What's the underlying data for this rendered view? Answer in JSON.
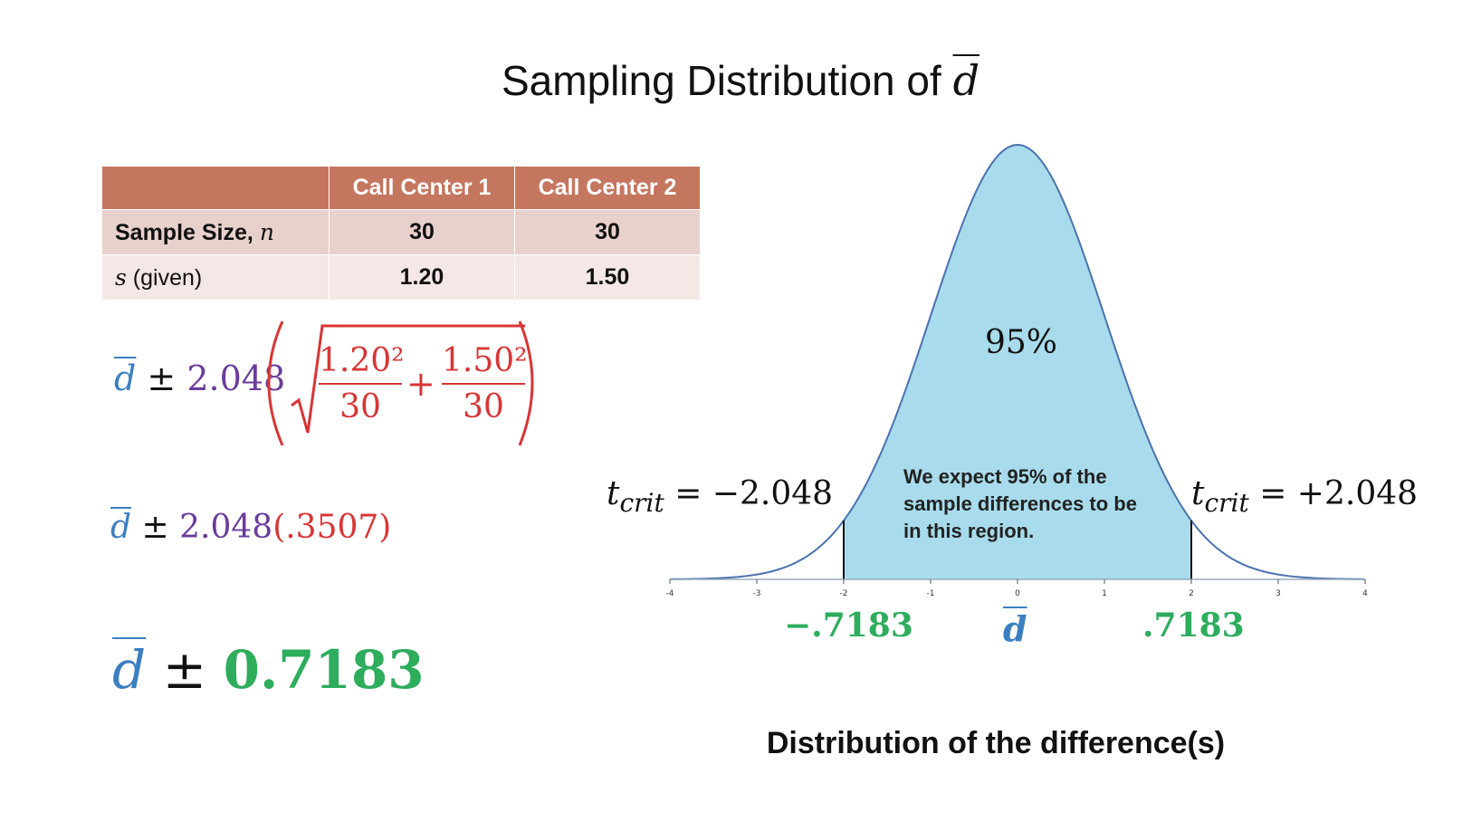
{
  "title": {
    "text": "Sampling Distribution of",
    "symbol": "d"
  },
  "table": {
    "headers": [
      "",
      "Call Center 1",
      "Call Center 2"
    ],
    "rows": [
      {
        "label": "Sample Size,",
        "label_var": "n",
        "values": [
          "30",
          "30"
        ]
      },
      {
        "label_var": "s",
        "label": "(given)",
        "values": [
          "1.20",
          "1.50"
        ]
      }
    ]
  },
  "equations": {
    "eq1": {
      "symbol": "d",
      "pm": "±",
      "critical": "2.048",
      "frac1_num": "1.20²",
      "frac1_den": "30",
      "plus": "+",
      "frac2_num": "1.50²",
      "frac2_den": "30"
    },
    "eq2": {
      "symbol": "d",
      "pm": "±",
      "critical": "2.048",
      "se": "(.3507)"
    },
    "eq3": {
      "symbol": "d",
      "pm": "±",
      "margin": "0.7183"
    }
  },
  "distribution": {
    "center_label": "95%",
    "note": "We expect 95% of the sample differences to be in this region.",
    "t_left": {
      "t": "t",
      "sub": "crit",
      "rest": " = −2.048"
    },
    "t_right": {
      "t": "t",
      "sub": "crit",
      "rest": " = +2.048"
    },
    "lower_bound": "−.7183",
    "upper_bound": ".7183",
    "center_symbol": "d",
    "ticks": [
      "-4",
      "-3",
      "-2",
      "-1",
      "0",
      "1",
      "2",
      "3",
      "4"
    ],
    "shade_range": [
      -2,
      2
    ],
    "fill_color": "#a8dcec",
    "line_color": "#4a72b0",
    "caption": "Distribution of the difference(s)"
  }
}
